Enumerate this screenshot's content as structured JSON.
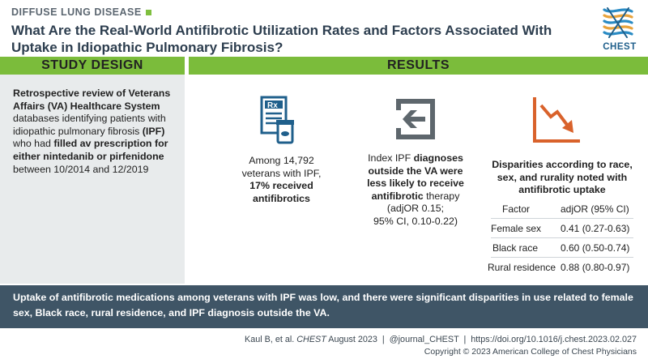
{
  "header": {
    "category": "DIFFUSE LUNG DISEASE",
    "title_line1": "What Are the Real-World Antifibrotic Utilization Rates and Factors Associated With",
    "title_line2": "Uptake in Idiopathic Pulmonary Fibrosis?",
    "logo_text": "CHEST"
  },
  "colors": {
    "green": "#7bbc3b",
    "navy": "#3f5566",
    "blue": "#1f5f8b",
    "orange": "#d9622b",
    "gray": "#5b6670"
  },
  "study_design": {
    "heading": "STUDY DESIGN",
    "p1": "Retrospective review of Veterans Affairs (VA) Healthcare System",
    "p2": "databases identifying patients with idiopathic pulmonary fibrosis",
    "p3": "(IPF)",
    "p4": "who had",
    "p5": "filled av prescription for either nintedanib or pirfenidone",
    "p6": "between 10/2014 and 12/2019"
  },
  "results": {
    "heading": "RESULTS",
    "r1": {
      "icon": "prescription-icon",
      "a": "Among 14,792",
      "b": "veterans with IPF,",
      "c": "17% received",
      "d": "antifibrotics"
    },
    "r2": {
      "icon": "arrow-in-icon",
      "a": "Index IPF",
      "b": "diagnoses outside the VA were less likely to receive antifibrotic",
      "c": "therapy",
      "d": "(adjOR 0.15;",
      "e": "95% CI, 0.10-0.22)"
    },
    "r3": {
      "icon": "declining-chart-icon",
      "a": "Disparities according to race, sex, and rurality noted with antifibrotic uptake",
      "table": {
        "headers": [
          "Factor",
          "adjOR (95% CI)"
        ],
        "rows": [
          [
            "Female sex",
            "0.41 (0.27-0.63)"
          ],
          [
            "Black race",
            "0.60 (0.50-0.74)"
          ],
          [
            "Rural residence",
            "0.88 (0.80-0.97)"
          ]
        ]
      }
    }
  },
  "conclusion": "Uptake of antifibrotic medications among veterans with IPF was low, and there were significant disparities in use related to female sex, Black race, rural residence, and IPF diagnosis outside the VA.",
  "citation": {
    "authors": "Kaul B, et al.",
    "journal": "CHEST",
    "date": "August 2023",
    "sep1": "|",
    "handle": "@journal_CHEST",
    "sep2": "|",
    "doi": "https://doi.org/10.1016/j.chest.2023.02.027"
  },
  "copyright": "Copyright © 2023 American College of Chest Physicians"
}
